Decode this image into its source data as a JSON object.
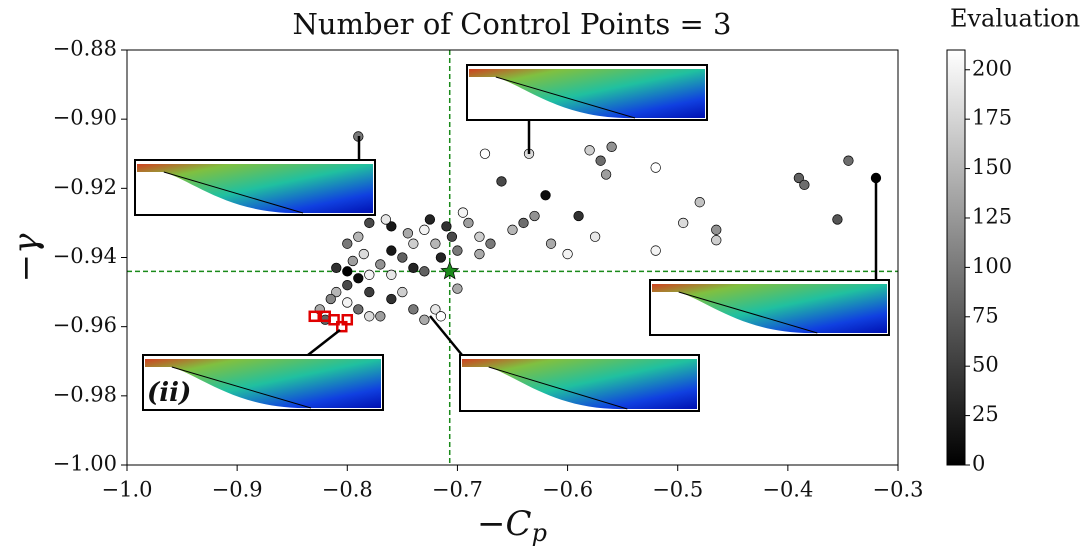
{
  "chart_data": {
    "type": "scatter",
    "title": "Number of Control Points = 3",
    "xlabel": "−C",
    "xlabel_sub": "p",
    "ylabel": "−γ",
    "colorbar_label": "Evaluation",
    "annotation": "(ii)",
    "xlim": [
      -1.0,
      -0.3
    ],
    "ylim": [
      -1.0,
      -0.88
    ],
    "clim": [
      0,
      210
    ],
    "xticks": [
      {
        "value": -1.0,
        "label": "−1.0"
      },
      {
        "value": -0.9,
        "label": "−0.9"
      },
      {
        "value": -0.8,
        "label": "−0.8"
      },
      {
        "value": -0.7,
        "label": "−0.7"
      },
      {
        "value": -0.6,
        "label": "−0.6"
      },
      {
        "value": -0.5,
        "label": "−0.5"
      },
      {
        "value": -0.4,
        "label": "−0.4"
      },
      {
        "value": -0.3,
        "label": "−0.3"
      }
    ],
    "yticks": [
      {
        "value": -1.0,
        "label": "−1.00"
      },
      {
        "value": -0.98,
        "label": "−0.98"
      },
      {
        "value": -0.96,
        "label": "−0.96"
      },
      {
        "value": -0.94,
        "label": "−0.94"
      },
      {
        "value": -0.92,
        "label": "−0.92"
      },
      {
        "value": -0.9,
        "label": "−0.90"
      },
      {
        "value": -0.88,
        "label": "−0.88"
      }
    ],
    "cticks": [
      0,
      25,
      50,
      75,
      100,
      125,
      150,
      175,
      200
    ],
    "reference_x": -0.707,
    "reference_y": -0.944,
    "reference_color": "#1a8a1a",
    "pareto_color": "#e00000",
    "points": {
      "x": [
        -0.79,
        -0.32,
        -0.345,
        -0.39,
        -0.385,
        -0.355,
        -0.48,
        -0.465,
        -0.465,
        -0.495,
        -0.52,
        -0.52,
        -0.57,
        -0.56,
        -0.58,
        -0.565,
        -0.59,
        -0.575,
        -0.62,
        -0.635,
        -0.675,
        -0.66,
        -0.63,
        -0.64,
        -0.615,
        -0.6,
        -0.65,
        -0.67,
        -0.68,
        -0.69,
        -0.695,
        -0.68,
        -0.7,
        -0.715,
        -0.72,
        -0.705,
        -0.74,
        -0.75,
        -0.76,
        -0.77,
        -0.78,
        -0.79,
        -0.8,
        -0.81,
        -0.815,
        -0.8,
        -0.79,
        -0.78,
        -0.77,
        -0.76,
        -0.75,
        -0.74,
        -0.73,
        -0.72,
        -0.715,
        -0.7,
        -0.73,
        -0.74,
        -0.76,
        -0.78,
        -0.8,
        -0.79,
        -0.78,
        -0.76,
        -0.745,
        -0.725,
        -0.73,
        -0.71,
        -0.765,
        -0.785,
        -0.8,
        -0.795,
        -0.82,
        -0.825,
        -0.81
      ],
      "y": [
        -0.905,
        -0.917,
        -0.912,
        -0.917,
        -0.919,
        -0.929,
        -0.924,
        -0.932,
        -0.935,
        -0.93,
        -0.938,
        -0.914,
        -0.912,
        -0.908,
        -0.909,
        -0.916,
        -0.928,
        -0.934,
        -0.922,
        -0.91,
        -0.91,
        -0.918,
        -0.928,
        -0.93,
        -0.936,
        -0.939,
        -0.932,
        -0.936,
        -0.934,
        -0.93,
        -0.927,
        -0.939,
        -0.938,
        -0.94,
        -0.936,
        -0.934,
        -0.936,
        -0.94,
        -0.938,
        -0.942,
        -0.945,
        -0.946,
        -0.948,
        -0.95,
        -0.952,
        -0.953,
        -0.955,
        -0.957,
        -0.957,
        -0.952,
        -0.95,
        -0.955,
        -0.958,
        -0.955,
        -0.957,
        -0.949,
        -0.944,
        -0.943,
        -0.945,
        -0.95,
        -0.944,
        -0.934,
        -0.93,
        -0.931,
        -0.933,
        -0.929,
        -0.932,
        -0.931,
        -0.929,
        -0.939,
        -0.936,
        -0.941,
        -0.958,
        -0.955,
        -0.943
      ],
      "c": [
        100,
        0,
        90,
        80,
        90,
        70,
        160,
        120,
        170,
        180,
        200,
        210,
        90,
        120,
        170,
        130,
        40,
        190,
        10,
        180,
        210,
        60,
        120,
        90,
        140,
        200,
        150,
        100,
        170,
        130,
        200,
        140,
        100,
        30,
        150,
        60,
        170,
        80,
        20,
        120,
        200,
        10,
        60,
        150,
        110,
        200,
        90,
        180,
        130,
        40,
        170,
        100,
        140,
        190,
        210,
        140,
        80,
        30,
        190,
        50,
        0,
        150,
        60,
        20,
        140,
        30,
        200,
        40,
        190,
        180,
        100,
        130,
        80,
        140,
        40
      ]
    },
    "pareto": {
      "x": [
        -0.83,
        -0.82,
        -0.812,
        -0.805,
        -0.8
      ],
      "y": [
        -0.957,
        -0.957,
        -0.958,
        -0.96,
        -0.958
      ]
    },
    "star": {
      "x": -0.707,
      "y": -0.944
    }
  }
}
